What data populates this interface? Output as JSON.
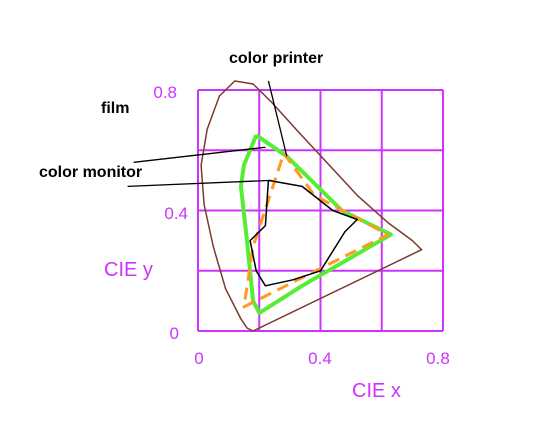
{
  "colors": {
    "grid": "#cc33ff",
    "axis_text": "#cc33ff",
    "spectral_locus": "#7a3b2e",
    "film": "#55ee33",
    "color_monitor": "#ff9922",
    "color_printer": "#000000",
    "leader": "#000000"
  },
  "labels": {
    "x_axis": "CIE x",
    "y_axis": "CIE y",
    "x_ticks": [
      "0",
      "0.4",
      "0.8"
    ],
    "y_ticks": [
      "0",
      "0.4",
      "0.8"
    ],
    "film": "film",
    "color_monitor": "color monitor",
    "color_printer": "color printer"
  },
  "chart_data": {
    "type": "scatter",
    "xlabel": "CIE x",
    "ylabel": "CIE y",
    "xlim": [
      0,
      0.8
    ],
    "ylim": [
      0,
      0.8
    ],
    "grid": true,
    "curves": {
      "spectral_locus": [
        [
          0.18,
          0.0
        ],
        [
          0.16,
          0.01
        ],
        [
          0.14,
          0.04
        ],
        [
          0.12,
          0.08
        ],
        [
          0.09,
          0.14
        ],
        [
          0.05,
          0.28
        ],
        [
          0.02,
          0.42
        ],
        [
          0.01,
          0.55
        ],
        [
          0.03,
          0.67
        ],
        [
          0.07,
          0.78
        ],
        [
          0.12,
          0.83
        ],
        [
          0.18,
          0.82
        ],
        [
          0.24,
          0.76
        ],
        [
          0.32,
          0.67
        ],
        [
          0.42,
          0.56
        ],
        [
          0.52,
          0.45
        ],
        [
          0.62,
          0.36
        ],
        [
          0.7,
          0.3
        ],
        [
          0.73,
          0.27
        ],
        [
          0.18,
          0.0
        ]
      ],
      "film": [
        [
          0.19,
          0.65
        ],
        [
          0.29,
          0.58
        ],
        [
          0.47,
          0.4
        ],
        [
          0.63,
          0.32
        ],
        [
          0.34,
          0.15
        ],
        [
          0.2,
          0.06
        ],
        [
          0.18,
          0.1
        ],
        [
          0.16,
          0.3
        ],
        [
          0.14,
          0.48
        ],
        [
          0.15,
          0.55
        ],
        [
          0.19,
          0.65
        ]
      ],
      "color_monitor": [
        [
          0.28,
          0.59
        ],
        [
          0.38,
          0.45
        ],
        [
          0.62,
          0.32
        ],
        [
          0.15,
          0.08
        ],
        [
          0.18,
          0.28
        ],
        [
          0.28,
          0.59
        ]
      ],
      "color_printer": [
        [
          0.23,
          0.5
        ],
        [
          0.34,
          0.48
        ],
        [
          0.44,
          0.4
        ],
        [
          0.52,
          0.37
        ],
        [
          0.48,
          0.33
        ],
        [
          0.4,
          0.2
        ],
        [
          0.31,
          0.17
        ],
        [
          0.22,
          0.15
        ],
        [
          0.19,
          0.2
        ],
        [
          0.17,
          0.3
        ],
        [
          0.22,
          0.35
        ],
        [
          0.23,
          0.5
        ]
      ]
    },
    "leaders": {
      "film": [
        [
          -0.21,
          0.56
        ],
        [
          0.22,
          0.61
        ]
      ],
      "color_monitor": [
        [
          -0.23,
          0.48
        ],
        [
          0.24,
          0.5
        ]
      ],
      "color_printer": [
        [
          0.23,
          0.83
        ],
        [
          0.29,
          0.58
        ]
      ]
    }
  }
}
